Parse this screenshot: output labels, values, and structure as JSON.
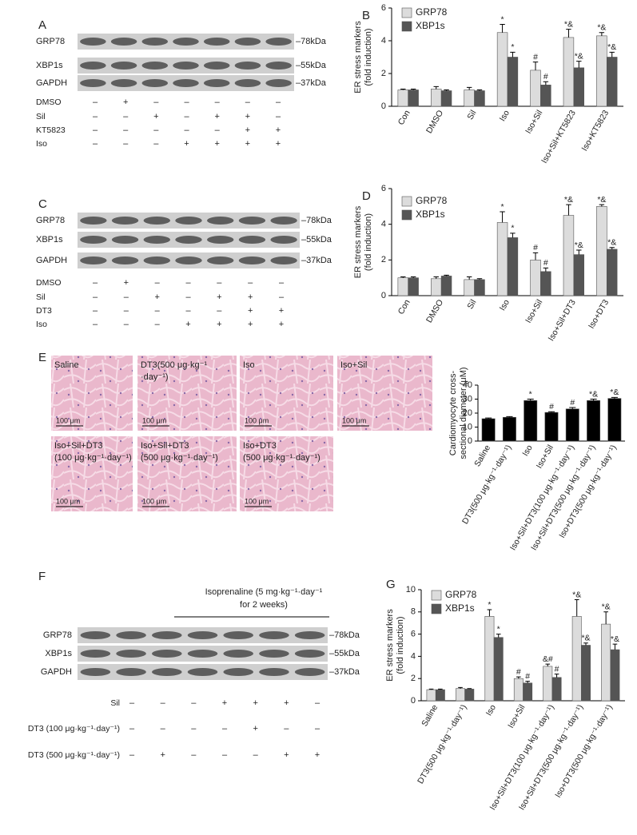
{
  "panel_labels": [
    "A",
    "B",
    "C",
    "D",
    "E",
    "F",
    "G"
  ],
  "blots": [
    {
      "rows": [
        {
          "label": "GRP78",
          "marker": "–78kDa"
        },
        {
          "label": "XBP1s",
          "marker": "–55kDa"
        },
        {
          "label": "GAPDH",
          "marker": "–37kDa"
        }
      ],
      "treatments": [
        {
          "label": "DMSO",
          "signs": [
            "–",
            "+",
            "–",
            "–",
            "–",
            "–",
            "–"
          ]
        },
        {
          "label": "Sil",
          "signs": [
            "–",
            "–",
            "+",
            "–",
            "+",
            "+",
            "–"
          ]
        },
        {
          "label": "KT5823",
          "signs": [
            "–",
            "–",
            "–",
            "–",
            "–",
            "+",
            "+"
          ]
        },
        {
          "label": "Iso",
          "signs": [
            "–",
            "–",
            "–",
            "+",
            "+",
            "+",
            "+"
          ]
        }
      ]
    },
    {
      "rows": [
        {
          "label": "GRP78",
          "marker": "–78kDa"
        },
        {
          "label": "XBP1s",
          "marker": "–55kDa"
        },
        {
          "label": "GAPDH",
          "marker": "–37kDa"
        }
      ],
      "treatments": [
        {
          "label": "DMSO",
          "signs": [
            "–",
            "+",
            "–",
            "–",
            "–",
            "–",
            "–"
          ]
        },
        {
          "label": "Sil",
          "signs": [
            "–",
            "–",
            "+",
            "–",
            "+",
            "+",
            "–"
          ]
        },
        {
          "label": "DT3",
          "signs": [
            "–",
            "–",
            "–",
            "–",
            "–",
            "+",
            "+"
          ]
        },
        {
          "label": "Iso",
          "signs": [
            "–",
            "–",
            "–",
            "+",
            "+",
            "+",
            "+"
          ]
        }
      ]
    },
    {
      "header": [
        "Isoprenaline (5 mg·kg⁻¹·day⁻¹",
        "for 2 weeks)"
      ],
      "rows": [
        {
          "label": "GRP78",
          "marker": "–78kDa"
        },
        {
          "label": "XBP1s",
          "marker": "–55kDa"
        },
        {
          "label": "GAPDH",
          "marker": "–37kDa"
        }
      ],
      "treatments": [
        {
          "label": "Sil",
          "signs": [
            "–",
            "–",
            "–",
            "+",
            "+",
            "+",
            "–"
          ]
        },
        {
          "label": "DT3 (100 μg·kg⁻¹·day⁻¹)",
          "signs": [
            "–",
            "–",
            "–",
            "–",
            "+",
            "–",
            "–"
          ]
        },
        {
          "label": "DT3 (500 μg·kg⁻¹·day⁻¹)",
          "signs": [
            "–",
            "+",
            "–",
            "–",
            "–",
            "+",
            "+"
          ]
        }
      ]
    }
  ],
  "histology": [
    {
      "label": [
        "Saline"
      ],
      "scale": "100 μm"
    },
    {
      "label": [
        "DT3(500 μg·kg⁻¹",
        "·day⁻¹)"
      ],
      "scale": "100 μm"
    },
    {
      "label": [
        "Iso"
      ],
      "scale": "100 μm"
    },
    {
      "label": [
        "Iso+Sil"
      ],
      "scale": "100 μm"
    },
    {
      "label": [
        "Iso+Sil+DT3",
        "(100 μg·kg⁻¹·day⁻¹)"
      ],
      "scale": "100 μm"
    },
    {
      "label": [
        "Iso+Sil+DT3",
        "(500 μg·kg⁻¹·day⁻¹)"
      ],
      "scale": "100 μm"
    },
    {
      "label": [
        "Iso+DT3",
        "(500 μg·kg⁻¹·day⁻¹)"
      ],
      "scale": "100 μm"
    }
  ],
  "chart_data": [
    {
      "type": "bar",
      "ylabel": [
        "ER stress markers",
        "(fold induction)"
      ],
      "categories": [
        "Con",
        "DMSO",
        "Sil",
        "Iso",
        "Iso+Sil",
        "Iso+Sil+KT5823",
        "Iso+KT5823"
      ],
      "ylim": [
        0,
        6
      ],
      "yticks": [
        0,
        2,
        4,
        6
      ],
      "series": [
        {
          "name": "GRP78",
          "color": "#dcdcdc",
          "values": [
            1,
            1.05,
            1,
            4.5,
            2.2,
            4.2,
            4.3
          ],
          "errors": [
            0.05,
            0.15,
            0.15,
            0.5,
            0.5,
            0.5,
            0.2
          ],
          "annotations": [
            null,
            null,
            null,
            "*",
            "#",
            "*&",
            "*&"
          ]
        },
        {
          "name": "XBP1s",
          "color": "#555555",
          "values": [
            1,
            0.95,
            0.95,
            3,
            1.3,
            2.35,
            3
          ],
          "errors": [
            0.05,
            0.05,
            0.05,
            0.3,
            0.2,
            0.4,
            0.3
          ],
          "annotations": [
            null,
            null,
            null,
            "*",
            "#",
            "*&",
            "*&"
          ]
        }
      ]
    },
    {
      "type": "bar",
      "ylabel": [
        "ER stress markers",
        "(fold induction)"
      ],
      "categories": [
        "Con",
        "DMSO",
        "Sil",
        "Iso",
        "Iso+Sil",
        "Iso+Sil+DT3",
        "Iso+DT3"
      ],
      "ylim": [
        0,
        6
      ],
      "yticks": [
        0,
        2,
        4,
        6
      ],
      "series": [
        {
          "name": "GRP78",
          "color": "#dcdcdc",
          "values": [
            1,
            0.95,
            0.9,
            4.1,
            2,
            4.5,
            5
          ],
          "errors": [
            0.05,
            0.1,
            0.15,
            0.6,
            0.4,
            0.6,
            0.1
          ],
          "annotations": [
            null,
            null,
            null,
            "*",
            "#",
            "*&",
            "*&"
          ]
        },
        {
          "name": "XBP1s",
          "color": "#555555",
          "values": [
            1,
            1.1,
            0.9,
            3.25,
            1.35,
            2.3,
            2.6
          ],
          "errors": [
            0.05,
            0.05,
            0.05,
            0.25,
            0.2,
            0.25,
            0.1
          ],
          "annotations": [
            null,
            null,
            null,
            "*",
            "#",
            "*&",
            "*&"
          ]
        }
      ]
    },
    {
      "type": "bar",
      "ylabel": [
        "Cardiomyocyte cross-",
        "sectional diameter (μM)"
      ],
      "categories": [
        "Saline",
        "DT3(500 μg·kg⁻¹·day⁻¹)",
        "Iso",
        "Iso+Sil",
        "Iso+Sil+DT3(100 μg·kg⁻¹·day⁻¹)",
        "Iso+Sil+DT3(500 μg·kg⁻¹·day⁻¹)",
        "Iso+DT3(500 μg·kg⁻¹·day⁻¹)"
      ],
      "ylim": [
        0,
        40
      ],
      "yticks": [
        0,
        10,
        20,
        30,
        40
      ],
      "color": "#000000",
      "values": [
        16,
        17,
        29,
        20.5,
        23,
        29,
        30.5
      ],
      "errors": [
        0.5,
        0.5,
        1,
        0.5,
        1,
        1,
        0.7
      ],
      "annotations": [
        null,
        null,
        "*",
        "#",
        "#",
        "*&",
        "*&"
      ]
    },
    {
      "type": "bar",
      "ylabel": [
        "ER stress markers",
        "(fold induction)"
      ],
      "categories": [
        "Saline",
        "DT3(500 μg·kg⁻¹·day⁻¹)",
        "Iso",
        "Iso+Sil",
        "Iso+Sil+DT3(100 μg·kg⁻¹·day⁻¹)",
        "Iso+Sil+DT3(500 μg·kg⁻¹·day⁻¹)",
        "Iso+DT3(500 μg·kg⁻¹·day⁻¹)"
      ],
      "ylim": [
        0,
        10
      ],
      "yticks": [
        0,
        2,
        4,
        6,
        8,
        10
      ],
      "series": [
        {
          "name": "GRP78",
          "color": "#dcdcdc",
          "values": [
            1,
            1.1,
            7.6,
            2,
            3.1,
            7.6,
            6.9
          ],
          "errors": [
            0.05,
            0.1,
            0.6,
            0.15,
            0.2,
            1.5,
            1.1
          ],
          "annotations": [
            null,
            null,
            "*",
            "#",
            "&#",
            "*&",
            "*&"
          ]
        },
        {
          "name": "XBP1s",
          "color": "#555555",
          "values": [
            1,
            1.05,
            5.7,
            1.6,
            2.1,
            5,
            4.6
          ],
          "errors": [
            0.05,
            0.05,
            0.3,
            0.15,
            0.3,
            0.2,
            0.5
          ],
          "annotations": [
            null,
            null,
            "*",
            "#",
            "#",
            "*&",
            "*&"
          ]
        }
      ]
    }
  ]
}
